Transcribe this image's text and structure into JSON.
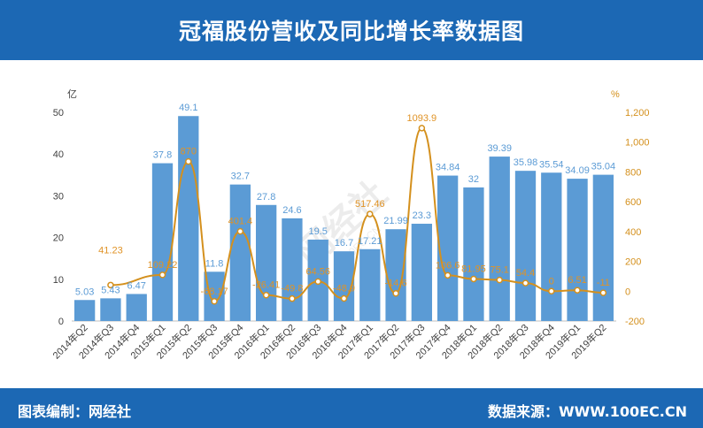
{
  "title": "冠福股份营收及同比增长率数据图",
  "footer": {
    "left": "图表编制：网经社",
    "right": "数据来源：WWW.100EC.CN"
  },
  "watermark": {
    "brand": "网经社",
    "url": "100EC.CN"
  },
  "colors": {
    "header_bg": "#1c68b4",
    "bar": "#5b9bd5",
    "line": "#d4901d",
    "bar_label": "#5b9bd5",
    "line_label": "#e09326"
  },
  "chart_data": {
    "type": "bar",
    "categories": [
      "2014年Q2",
      "2014年Q3",
      "2014年Q4",
      "2015年Q1",
      "2015年Q2",
      "2015年Q3",
      "2015年Q4",
      "2016年Q1",
      "2016年Q2",
      "2016年Q3",
      "2016年Q4",
      "2017年Q1",
      "2017年Q2",
      "2017年Q3",
      "2017年Q4",
      "2018年Q1",
      "2018年Q2",
      "2018年Q3",
      "2018年Q4",
      "2019年Q1",
      "2019年Q2"
    ],
    "series": [
      {
        "axis": "left",
        "type": "bar",
        "values": [
          5.03,
          5.43,
          6.47,
          37.8,
          49.1,
          11.8,
          32.7,
          27.8,
          24.6,
          19.5,
          16.7,
          17.21,
          21.99,
          23.3,
          34.84,
          32,
          39.39,
          35.98,
          35.54,
          34.09,
          35.04
        ],
        "labels": [
          "5.03",
          "5.43",
          "6.47",
          "37.8",
          "49.1",
          "11.8",
          "32.7",
          "27.8",
          "24.6",
          "19.5",
          "16.7",
          "17.21",
          "21.99",
          "23.3",
          "34.84",
          "32",
          "39.39",
          "35.98",
          "35.54",
          "34.09",
          "35.04"
        ]
      },
      {
        "axis": "right",
        "type": "line",
        "values": [
          null,
          41.23,
          null,
          109.22,
          870,
          -68.17,
          401.4,
          -26.41,
          -49.8,
          64.56,
          -48.9,
          517.46,
          -14.6,
          1093.9,
          106.6,
          81.95,
          75.1,
          54.4,
          0,
          6.51,
          -11
        ],
        "labels": [
          "",
          "41.23",
          "",
          "109.22",
          "870",
          "-68.17",
          "401.4",
          "-26.41",
          "-49.8",
          "64.56",
          "-48.9",
          "517.46",
          "-14.6",
          "1093.9",
          "106.6",
          "81.95",
          "75.1",
          "54.4",
          "0",
          "6.51",
          "-11"
        ]
      }
    ],
    "y_left": {
      "unit": "亿",
      "ylim": [
        0,
        50
      ],
      "ticks": [
        "0",
        "10",
        "20",
        "30",
        "40",
        "50"
      ]
    },
    "y_right": {
      "unit": "%",
      "ylim": [
        -200,
        1200
      ],
      "ticks": [
        "-200",
        "0",
        "200",
        "400",
        "600",
        "800",
        "1,000",
        "1,200"
      ]
    },
    "grid": false
  }
}
